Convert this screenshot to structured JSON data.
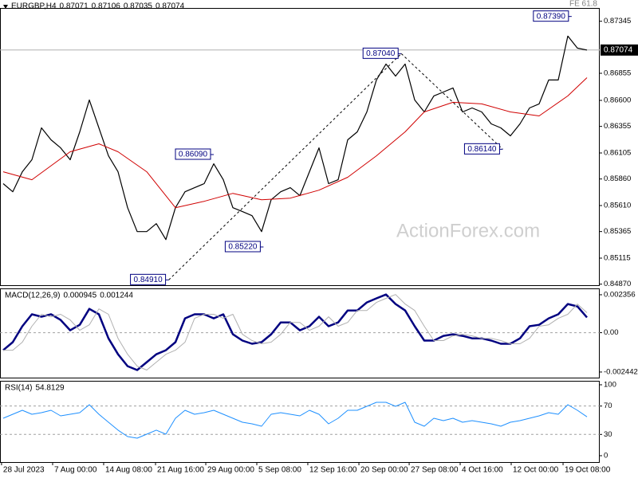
{
  "chart_data": [
    {
      "type": "line",
      "title": "EURGBP,H4",
      "header_values": [
        0.87071,
        0.87106,
        0.87035,
        0.87074
      ],
      "overlay_label": "FE 61.8",
      "watermark": "ActionForex.com",
      "xlim": [
        -0.33,
        62.33
      ],
      "ylim": [
        0.8486,
        0.8747
      ],
      "yticks": [
        {
          "value": 0.8487,
          "label": "0.84870"
        },
        0.85115,
        0.85365,
        {
          "value": 0.8561,
          "label": "0.85610"
        },
        {
          "value": 0.8586,
          "label": "0.85860"
        },
        0.86105,
        0.86355,
        {
          "value": 0.866,
          "label": "0.86600"
        },
        0.86855,
        0.87345
      ],
      "current_price": 0.87074,
      "series": [
        {
          "color": "#000000",
          "x": [
            0,
            1,
            2,
            3,
            4,
            5,
            6,
            7,
            8,
            9,
            10,
            11,
            12,
            13,
            14,
            15,
            16,
            17,
            18,
            19,
            20,
            21,
            22,
            23,
            24,
            25,
            26,
            27,
            28,
            29,
            30,
            31,
            32,
            33,
            34,
            35,
            36,
            37,
            38,
            39,
            40,
            41,
            42,
            43,
            44,
            45,
            46,
            47,
            48,
            49,
            50,
            51,
            52,
            53,
            54,
            55,
            56,
            57,
            58,
            59,
            60,
            61
          ],
          "values": [
            0.85816,
            0.8574,
            0.85928,
            0.86041,
            0.86341,
            0.86229,
            0.86153,
            0.86041,
            0.86304,
            0.86604,
            0.86341,
            0.86078,
            0.85928,
            0.8559,
            0.85365,
            0.85365,
            0.8544,
            0.8529,
            0.8559,
            0.8574,
            0.85778,
            0.85816,
            0.86003,
            0.85853,
            0.8559,
            0.85553,
            0.85515,
            0.85365,
            0.85665,
            0.8574,
            0.85778,
            0.85703,
            0.85928,
            0.86153,
            0.85816,
            0.85853,
            0.86229,
            0.86304,
            0.86491,
            0.86792,
            0.86942,
            0.86829,
            0.86942,
            0.86604,
            0.86491,
            0.86642,
            0.86679,
            0.86717,
            0.86491,
            0.86529,
            0.86491,
            0.86379,
            0.86341,
            0.86266,
            0.86379,
            0.86529,
            0.86567,
            0.86792,
            0.86792,
            0.87205,
            0.87092,
            0.87074
          ]
        },
        {
          "color": "#d00000",
          "x": [
            0,
            3,
            7,
            10,
            12,
            15,
            18,
            21,
            24,
            27,
            30,
            33,
            36,
            39,
            42,
            44,
            47,
            50,
            53,
            56,
            59,
            61
          ],
          "values": [
            0.85928,
            0.85853,
            0.86116,
            0.86191,
            0.86116,
            0.85928,
            0.8559,
            0.8565,
            0.85725,
            0.85665,
            0.8568,
            0.85755,
            0.85876,
            0.86078,
            0.86304,
            0.86491,
            0.86582,
            0.86567,
            0.86491,
            0.86454,
            0.86642,
            0.86814
          ]
        }
      ],
      "annotations": [
        {
          "x": 59.4,
          "value": 0.8739,
          "label": "0.87390"
        },
        {
          "x": 41.6,
          "value": 0.8704,
          "label": "0.87040"
        },
        {
          "x": 22,
          "value": 0.8609,
          "label": "0.86090"
        },
        {
          "x": 52.2,
          "value": 0.8614,
          "label": "0.86140"
        },
        {
          "x": 27.2,
          "value": 0.8522,
          "label": "0.85220"
        },
        {
          "x": 17.3,
          "value": 0.8491,
          "label": "0.84910"
        }
      ]
    },
    {
      "type": "line",
      "title": "MACD(12,26,9)",
      "readings": [
        0.000945,
        0.001244
      ],
      "xlim": [
        -0.33,
        62.33
      ],
      "ylim": [
        -0.00279,
        0.00275
      ],
      "yticks": [
        0.002356,
        {
          "value": 0,
          "label": "0.00"
        },
        -0.002442
      ],
      "levels": [
        0
      ],
      "series": [
        {
          "color": "#000080",
          "x": [
            0,
            1,
            2,
            3,
            4,
            5,
            6,
            7,
            8,
            9,
            10,
            11,
            12,
            13,
            14,
            15,
            16,
            17,
            18,
            19,
            20,
            21,
            22,
            23,
            24,
            25,
            26,
            27,
            28,
            29,
            30,
            31,
            32,
            33,
            34,
            35,
            36,
            37,
            38,
            39,
            40,
            41,
            42,
            43,
            44,
            45,
            46,
            47,
            48,
            49,
            50,
            51,
            52,
            53,
            54,
            55,
            56,
            57,
            58,
            59,
            60,
            61
          ],
          "values": [
            -0.00109,
            -0.00059,
            0.0004,
            0.00114,
            0.00099,
            0.00114,
            0.00079,
            0.00015,
            0.00049,
            0.00148,
            0.00114,
            -0.00035,
            -0.00134,
            -0.00208,
            -0.00232,
            -0.00183,
            -0.00134,
            -0.00109,
            -0.00059,
            0.00089,
            0.00114,
            0.00114,
            0.00089,
            0.00114,
            -0.0001,
            -0.00049,
            -0.00069,
            -0.00059,
            -0.0001,
            0.00064,
            0.00064,
            0.00015,
            0.0004,
            0.00099,
            0.0004,
            0.00064,
            0.00138,
            0.00138,
            0.00188,
            0.00213,
            0.00237,
            0.00178,
            0.00138,
            0.0004,
            -0.00049,
            -0.00049,
            -0.0002,
            -0.0001,
            -0.0002,
            -0.00035,
            -0.00035,
            -0.00049,
            -0.00069,
            -0.00069,
            -0.00035,
            0.0004,
            0.00049,
            0.00089,
            0.00114,
            0.00178,
            0.00163,
            0.00095
          ]
        },
        {
          "color": "#b0b0b0",
          "x": [
            0,
            1,
            2,
            3,
            4,
            5,
            6,
            7,
            8,
            9,
            10,
            11,
            12,
            13,
            14,
            15,
            16,
            17,
            18,
            19,
            20,
            21,
            22,
            23,
            24,
            25,
            26,
            27,
            28,
            29,
            30,
            31,
            32,
            33,
            34,
            35,
            36,
            37,
            38,
            39,
            40,
            41,
            42,
            43,
            44,
            45,
            46,
            47,
            48,
            49,
            50,
            51,
            52,
            53,
            54,
            55,
            56,
            57,
            58,
            59,
            60,
            61
          ],
          "values": [
            -0.00109,
            -0.00109,
            -0.00059,
            0.0004,
            0.00114,
            0.00099,
            0.00114,
            0.00079,
            0.00015,
            0.00049,
            0.00148,
            0.00114,
            -0.00035,
            -0.00134,
            -0.00208,
            -0.00232,
            -0.00183,
            -0.00134,
            -0.00109,
            -0.00059,
            0.00089,
            0.00114,
            0.00114,
            0.00089,
            0.00114,
            -0.0001,
            -0.00049,
            -0.00069,
            -0.00059,
            -0.0001,
            0.00064,
            0.00064,
            0.00015,
            0.0004,
            0.00099,
            0.0004,
            0.00064,
            0.00138,
            0.00138,
            0.00188,
            0.00213,
            0.00237,
            0.00178,
            0.00138,
            0.0004,
            -0.00049,
            -0.00049,
            -0.0002,
            -0.0001,
            -0.0002,
            -0.00035,
            -0.00035,
            -0.00049,
            -0.00069,
            -0.00069,
            -0.00035,
            0.0004,
            0.00049,
            0.00089,
            0.00114,
            0.00178,
            0.00124
          ]
        }
      ]
    },
    {
      "type": "line",
      "title": "RSI(14)",
      "readings": [
        54.8129
      ],
      "xlim": [
        -0.33,
        62.33
      ],
      "ylim": [
        -9,
        105.6
      ],
      "yticks": [
        100,
        70,
        30,
        0
      ],
      "levels": [
        70,
        30
      ],
      "xticks": [
        {
          "value": -0.17,
          "label": "28 Jul 2023"
        },
        {
          "value": 5.17,
          "label": "7 Aug 00:00"
        },
        {
          "value": 10.5,
          "label": "14 Aug 08:00"
        },
        {
          "value": 15.92,
          "label": "21 Aug 16:00"
        },
        {
          "value": 21.17,
          "label": "29 Aug 00:00"
        },
        {
          "value": 26.5,
          "label": "5 Sep 08:00"
        },
        {
          "value": 31.83,
          "label": "12 Sep 16:00"
        },
        {
          "value": 37.17,
          "label": "20 Sep 00:00"
        },
        {
          "value": 42.42,
          "label": "27 Sep 08:00"
        },
        {
          "value": 47.75,
          "label": "4 Oct 16:00"
        },
        {
          "value": 53.08,
          "label": "12 Oct 00:00"
        },
        {
          "value": 58.5,
          "label": "19 Oct 08:00"
        }
      ],
      "series": [
        {
          "color": "#1e90ff",
          "x": [
            0,
            1,
            2,
            3,
            4,
            5,
            6,
            7,
            8,
            9,
            10,
            11,
            12,
            13,
            14,
            15,
            16,
            17,
            18,
            19,
            20,
            21,
            22,
            23,
            24,
            25,
            26,
            27,
            28,
            29,
            30,
            31,
            32,
            33,
            34,
            35,
            36,
            37,
            38,
            39,
            40,
            41,
            42,
            43,
            44,
            45,
            46,
            47,
            48,
            49,
            50,
            51,
            52,
            53,
            54,
            55,
            56,
            57,
            58,
            59,
            60,
            61
          ],
          "values": [
            52.8,
            58.4,
            64,
            58.4,
            60.7,
            64,
            56.2,
            58.4,
            60.7,
            71.9,
            58.4,
            47.2,
            36,
            27,
            24.7,
            30.3,
            36,
            30.3,
            52.8,
            64,
            58.4,
            60.7,
            64,
            58.4,
            52.8,
            47.2,
            44.9,
            41.6,
            58.4,
            60.7,
            58.4,
            56.2,
            64,
            58.4,
            44.9,
            52.8,
            64,
            64,
            69.7,
            75.3,
            75.3,
            69.7,
            75.3,
            47.2,
            41.6,
            52.8,
            49.4,
            52.8,
            47.2,
            49.4,
            47.2,
            44.9,
            41.6,
            47.2,
            49.4,
            52.8,
            56.2,
            60.7,
            58.4,
            71.9,
            64,
            54.8
          ]
        }
      ]
    }
  ]
}
